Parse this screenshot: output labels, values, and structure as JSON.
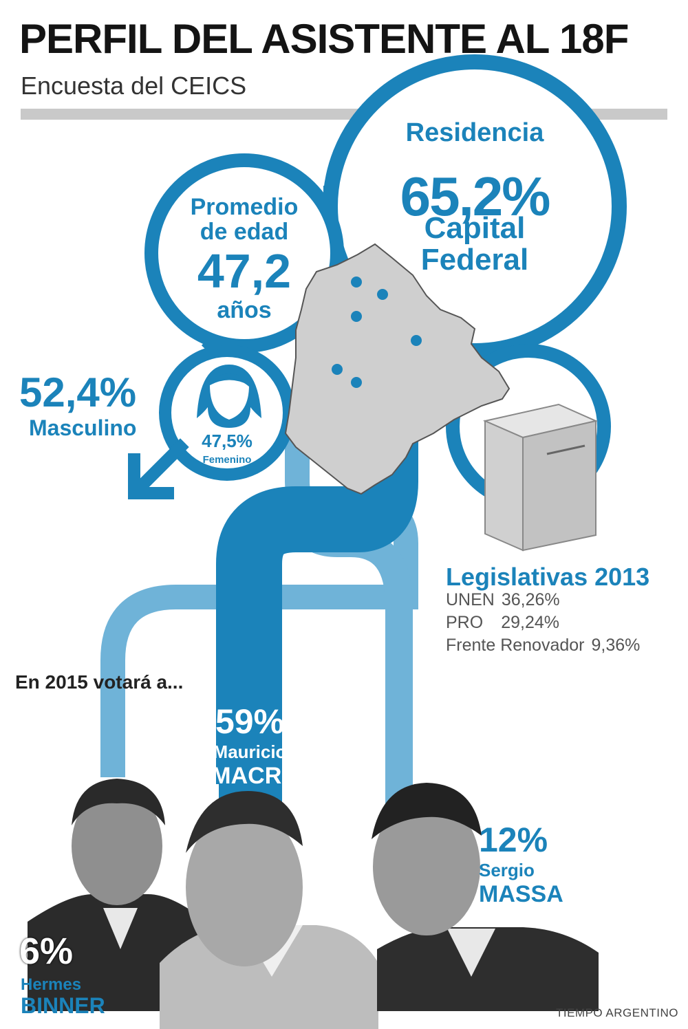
{
  "header": {
    "title": "PERFIL DEL ASISTENTE AL 18F",
    "subtitle": "Encuesta del CEICS"
  },
  "residence": {
    "label": "Residencia",
    "value": "65,2%",
    "place_line1": "Capital",
    "place_line2": "Federal"
  },
  "age": {
    "label_line1": "Promedio",
    "label_line2": "de edad",
    "value": "47,2",
    "unit": "años"
  },
  "gender": {
    "male_value": "52,4%",
    "male_label": "Masculino",
    "female_value": "47,5%",
    "female_label": "Femenino"
  },
  "legislativas": {
    "title": "Legislativas 2013",
    "rows": [
      {
        "party": "UNEN",
        "value": "36,26%"
      },
      {
        "party": "PRO",
        "value": "29,24%"
      },
      {
        "party": "Frente Renovador",
        "value": "9,36%"
      }
    ]
  },
  "vote_2015": {
    "label": "En 2015 votará a...",
    "candidates": [
      {
        "pct": "59%",
        "first": "Mauricio",
        "last": "MACRI"
      },
      {
        "pct": "12%",
        "first": "Sergio",
        "last": "MASSA"
      },
      {
        "pct": "6%",
        "first": "Hermes",
        "last": "BINNER"
      }
    ]
  },
  "credit": "TIEMPO ARGENTINO",
  "colors": {
    "primary_blue": "#1b83ba",
    "light_blue": "#6fb3d8",
    "map_gray": "#cfcfcf"
  }
}
